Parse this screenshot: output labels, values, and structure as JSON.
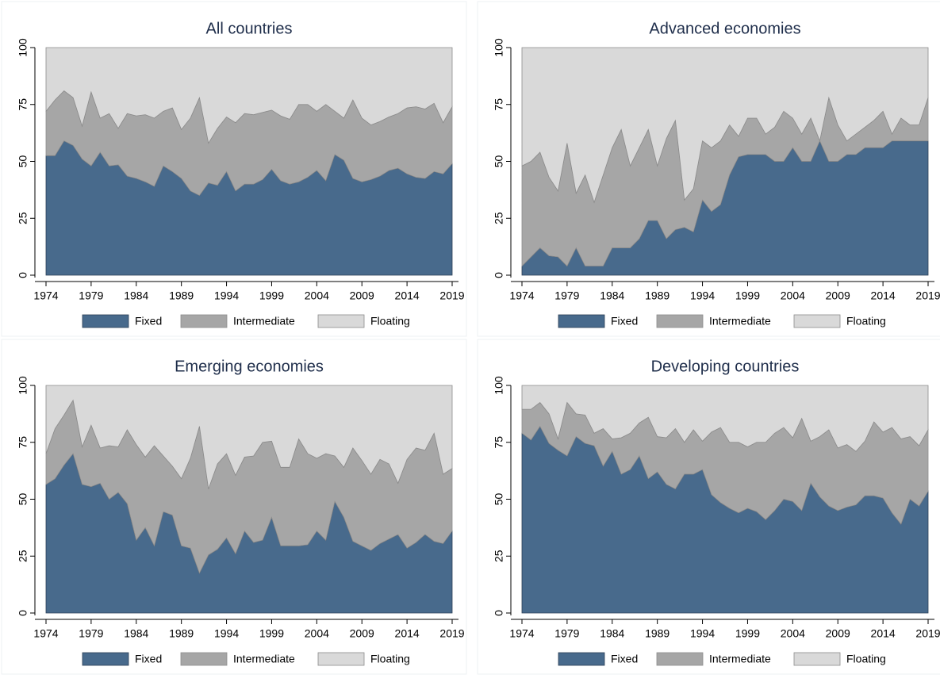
{
  "chart_data": [
    {
      "type": "area",
      "stacked": true,
      "title": "All countries",
      "legend": "bottom",
      "x": [
        1974,
        1975,
        1976,
        1977,
        1978,
        1979,
        1980,
        1981,
        1982,
        1983,
        1984,
        1985,
        1986,
        1987,
        1988,
        1989,
        1990,
        1991,
        1992,
        1993,
        1994,
        1995,
        1996,
        1997,
        1998,
        1999,
        2000,
        2001,
        2002,
        2003,
        2004,
        2005,
        2006,
        2007,
        2008,
        2009,
        2010,
        2011,
        2012,
        2013,
        2014,
        2015,
        2016,
        2017,
        2018,
        2019
      ],
      "xlim": [
        1974,
        2019
      ],
      "xticks": [
        1974,
        1979,
        1984,
        1989,
        1994,
        1999,
        2004,
        2009,
        2014,
        2019
      ],
      "ylim": [
        0,
        100
      ],
      "yticks": [
        0,
        25,
        50,
        75,
        100
      ],
      "series": [
        {
          "name": "Fixed",
          "color": "#486a8c",
          "values": [
            52.5,
            52.5,
            59,
            57,
            51,
            48,
            54,
            48,
            48.5,
            43.5,
            42.5,
            41,
            39,
            48,
            45.5,
            42.5,
            37,
            35,
            40.5,
            39.5,
            45.5,
            37,
            40,
            40,
            42,
            46.5,
            41.5,
            40,
            41,
            43,
            46,
            41.5,
            53,
            50.5,
            42.5,
            41,
            42,
            43.5,
            46,
            47,
            44.5,
            43,
            42.5,
            45.5,
            44.5,
            49
          ]
        },
        {
          "name": "Intermediate",
          "color": "#a6a6a6",
          "values": [
            19.5,
            24.5,
            22,
            21,
            14.5,
            32.5,
            15,
            23,
            16,
            27.5,
            27.5,
            29.5,
            30,
            24,
            28,
            21.5,
            32,
            43,
            17.5,
            25,
            24,
            30,
            31,
            30.5,
            29.5,
            26,
            28.5,
            28.5,
            34,
            32,
            26,
            33.5,
            19,
            18.5,
            34.5,
            28,
            24,
            24,
            23.5,
            24,
            29,
            31,
            30.5,
            30,
            22.5,
            25
          ]
        },
        {
          "name": "Floating",
          "color": "#d9d9d9",
          "values": [
            28,
            23,
            19,
            22,
            34.5,
            19.5,
            31,
            29,
            35.5,
            29,
            30,
            29.5,
            31,
            28,
            26.5,
            36,
            31,
            22,
            42,
            35.5,
            30.5,
            33,
            29,
            29.5,
            28.5,
            27.5,
            30,
            31.5,
            25,
            25,
            28,
            25,
            28,
            31,
            23,
            31,
            34,
            32.5,
            30.5,
            29,
            26.5,
            26,
            27,
            24.5,
            33,
            26
          ]
        }
      ]
    },
    {
      "type": "area",
      "stacked": true,
      "title": "Advanced economies",
      "legend": "bottom",
      "x": [
        1974,
        1975,
        1976,
        1977,
        1978,
        1979,
        1980,
        1981,
        1982,
        1983,
        1984,
        1985,
        1986,
        1987,
        1988,
        1989,
        1990,
        1991,
        1992,
        1993,
        1994,
        1995,
        1996,
        1997,
        1998,
        1999,
        2000,
        2001,
        2002,
        2003,
        2004,
        2005,
        2006,
        2007,
        2008,
        2009,
        2010,
        2011,
        2012,
        2013,
        2014,
        2015,
        2016,
        2017,
        2018,
        2019
      ],
      "xlim": [
        1974,
        2019
      ],
      "xticks": [
        1974,
        1979,
        1984,
        1989,
        1994,
        1999,
        2004,
        2009,
        2014,
        2019
      ],
      "ylim": [
        0,
        100
      ],
      "yticks": [
        0,
        25,
        50,
        75,
        100
      ],
      "series": [
        {
          "name": "Fixed",
          "color": "#486a8c",
          "values": [
            4,
            8,
            12,
            8.5,
            8,
            4,
            12,
            4,
            4,
            4,
            12,
            12,
            12,
            16,
            24,
            24,
            16,
            20,
            21,
            19,
            33,
            28,
            31,
            44,
            52,
            53,
            53,
            53,
            50,
            50,
            56,
            50,
            50,
            59,
            50,
            50,
            53,
            53,
            56,
            56,
            56,
            59,
            59,
            59,
            59,
            59
          ]
        },
        {
          "name": "Intermediate",
          "color": "#a6a6a6",
          "values": [
            44,
            42,
            42,
            34.5,
            29,
            54,
            24,
            40,
            28,
            40,
            44,
            52,
            36,
            40,
            40,
            24,
            44,
            48,
            12,
            19,
            26,
            28,
            28,
            22,
            9,
            16,
            16,
            9,
            15,
            22,
            13,
            12,
            19,
            0,
            28,
            16,
            6,
            9,
            9,
            12,
            16,
            3,
            10,
            7,
            7,
            19
          ]
        },
        {
          "name": "Floating",
          "color": "#d9d9d9",
          "values": [
            52,
            50,
            46,
            57,
            63,
            42,
            64,
            56,
            68,
            56,
            44,
            36,
            52,
            44,
            36,
            52,
            40,
            32,
            67,
            62,
            41,
            44,
            41,
            34,
            39,
            31,
            31,
            38,
            35,
            28,
            31,
            38,
            31,
            41,
            22,
            34,
            41,
            38,
            35,
            32,
            28,
            38,
            31,
            34,
            34,
            22
          ]
        }
      ]
    },
    {
      "type": "area",
      "stacked": true,
      "title": "Emerging economies",
      "legend": "bottom",
      "x": [
        1974,
        1975,
        1976,
        1977,
        1978,
        1979,
        1980,
        1981,
        1982,
        1983,
        1984,
        1985,
        1986,
        1987,
        1988,
        1989,
        1990,
        1991,
        1992,
        1993,
        1994,
        1995,
        1996,
        1997,
        1998,
        1999,
        2000,
        2001,
        2002,
        2003,
        2004,
        2005,
        2006,
        2007,
        2008,
        2009,
        2010,
        2011,
        2012,
        2013,
        2014,
        2015,
        2016,
        2017,
        2018,
        2019
      ],
      "xlim": [
        1974,
        2019
      ],
      "xticks": [
        1974,
        1979,
        1984,
        1989,
        1994,
        1999,
        2004,
        2009,
        2014,
        2019
      ],
      "ylim": [
        0,
        100
      ],
      "yticks": [
        0,
        25,
        50,
        75,
        100
      ],
      "series": [
        {
          "name": "Fixed",
          "color": "#486a8c",
          "values": [
            56.5,
            59,
            65,
            70,
            56.5,
            55.5,
            57,
            50,
            53,
            48,
            32,
            37.5,
            29.5,
            44.5,
            43,
            29.5,
            28.5,
            17.5,
            25.5,
            28,
            33,
            26,
            36,
            31,
            32,
            42,
            29.5,
            29.5,
            29.5,
            30,
            36,
            32,
            49,
            42,
            31.5,
            29.5,
            27.5,
            30.5,
            32.5,
            34.5,
            28.5,
            31,
            34.5,
            31.5,
            30.5,
            36
          ]
        },
        {
          "name": "Intermediate",
          "color": "#a6a6a6",
          "values": [
            13.5,
            22,
            22,
            23.5,
            16.5,
            27,
            15.5,
            23.5,
            20,
            32.5,
            42,
            31,
            44,
            24.5,
            21.5,
            29.5,
            39.5,
            64.5,
            29,
            37.5,
            37,
            34.5,
            32.5,
            38,
            43,
            33.5,
            34.5,
            34.5,
            47,
            40,
            32,
            38,
            20,
            22,
            41,
            37.5,
            33.5,
            37,
            33,
            22.5,
            39,
            41.5,
            37,
            47.5,
            30.5,
            27.5
          ]
        },
        {
          "name": "Floating",
          "color": "#d9d9d9",
          "values": [
            30,
            19,
            13,
            6.5,
            27,
            17.5,
            27.5,
            26.5,
            27,
            19.5,
            26,
            31.5,
            26.5,
            31,
            35.5,
            41,
            32,
            18,
            45.5,
            34.5,
            30,
            39.5,
            31.5,
            31,
            25,
            24.5,
            36,
            36,
            23.5,
            30,
            32,
            30,
            31,
            36,
            27.5,
            33,
            39,
            32.5,
            34.5,
            43,
            32.5,
            27.5,
            28.5,
            21,
            39,
            36.5
          ]
        }
      ]
    },
    {
      "type": "area",
      "stacked": true,
      "title": "Developing countries",
      "legend": "bottom",
      "x": [
        1974,
        1975,
        1976,
        1977,
        1978,
        1979,
        1980,
        1981,
        1982,
        1983,
        1984,
        1985,
        1986,
        1987,
        1988,
        1989,
        1990,
        1991,
        1992,
        1993,
        1994,
        1995,
        1996,
        1997,
        1998,
        1999,
        2000,
        2001,
        2002,
        2003,
        2004,
        2005,
        2006,
        2007,
        2008,
        2009,
        2010,
        2011,
        2012,
        2013,
        2014,
        2015,
        2016,
        2017,
        2018,
        2019
      ],
      "xlim": [
        1974,
        2019
      ],
      "xticks": [
        1974,
        1979,
        1984,
        1989,
        1994,
        1999,
        2004,
        2009,
        2014,
        2019
      ],
      "ylim": [
        0,
        100
      ],
      "yticks": [
        0,
        25,
        50,
        75,
        100
      ],
      "series": [
        {
          "name": "Fixed",
          "color": "#486a8c",
          "values": [
            79,
            76,
            82,
            74.5,
            71.5,
            69,
            77.5,
            74.5,
            73.5,
            64.5,
            71,
            61,
            63,
            69,
            59,
            62,
            56.5,
            54.5,
            61,
            61,
            63,
            52,
            48.5,
            46,
            44,
            46,
            44.5,
            41,
            45,
            50,
            49,
            45,
            57,
            51,
            47,
            45,
            46.5,
            47.5,
            51.5,
            51.5,
            50.5,
            44,
            39,
            50,
            47,
            53.5
          ]
        },
        {
          "name": "Intermediate",
          "color": "#a6a6a6",
          "values": [
            10.5,
            13.5,
            10.5,
            13,
            5,
            23.5,
            10,
            12.5,
            5.5,
            16.5,
            5.5,
            16,
            16,
            14.5,
            27,
            15.5,
            20.5,
            26.5,
            14,
            19.5,
            12.5,
            27.5,
            33,
            29,
            31,
            27,
            30.5,
            34,
            34,
            31.5,
            28,
            40.5,
            18.5,
            26.5,
            33.5,
            27.5,
            27.5,
            23.5,
            24,
            32.5,
            29,
            37.5,
            37.5,
            27.5,
            26.5,
            27
          ]
        },
        {
          "name": "Floating",
          "color": "#d9d9d9",
          "values": [
            10.5,
            10.5,
            7.5,
            12.5,
            23.5,
            7.5,
            12.5,
            13,
            21,
            19,
            23.5,
            23,
            21,
            16.5,
            14,
            22.5,
            23,
            19,
            25,
            19.5,
            24.5,
            20.5,
            18.5,
            25,
            25,
            27,
            25,
            25,
            21,
            18.5,
            23,
            14.5,
            24.5,
            22.5,
            19.5,
            27.5,
            26,
            29,
            24.5,
            16,
            20.5,
            18.5,
            23.5,
            22.5,
            26.5,
            19.5
          ]
        }
      ]
    }
  ]
}
